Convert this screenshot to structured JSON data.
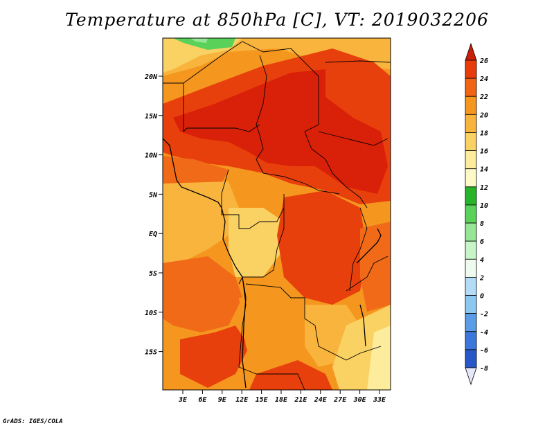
{
  "title": "Temperature at 850hPa [C], VT: 2019032206",
  "credit": "GrADS: IGES/COLA",
  "lat_labels": [
    "20N",
    "15N",
    "10N",
    "5N",
    "EQ",
    "5S",
    "10S",
    "15S"
  ],
  "lon_labels": [
    "3E",
    "6E",
    "9E",
    "12E",
    "15E",
    "18E",
    "21E",
    "24E",
    "27E",
    "30E",
    "33E"
  ],
  "colorbar": {
    "labels": [
      "26",
      "24",
      "22",
      "20",
      "18",
      "16",
      "14",
      "12",
      "10",
      "8",
      "6",
      "4",
      "2",
      "0",
      "-2",
      "-4",
      "-6",
      "-8"
    ],
    "colors_top_to_bottom": [
      "#c81e0a",
      "#e83c0a",
      "#f06414",
      "#f5961e",
      "#f8b43c",
      "#fad264",
      "#fcec9c",
      "#fefac8",
      "#28b428",
      "#5ad25a",
      "#96e696",
      "#c8f5c8",
      "#eefaee",
      "#b4dcf6",
      "#8cc8f0",
      "#5a9ce6",
      "#3c78dc",
      "#2858c8",
      "#1e3ca0",
      "#0a146e"
    ]
  },
  "field": {
    "description_colors": {
      "hot_core": "#d92008",
      "hot": "#e8400c",
      "warm": "#f06a18",
      "mid": "#f5961e",
      "mild": "#f8b43c",
      "cool": "#fad264",
      "coolest": "#fcec9c",
      "green": "#5ad25a"
    }
  }
}
